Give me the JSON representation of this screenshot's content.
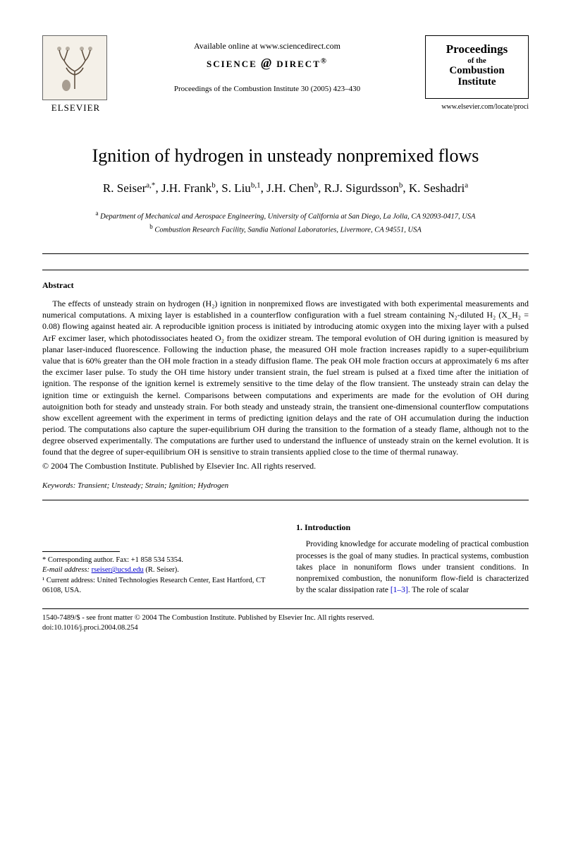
{
  "header": {
    "publisher_name": "ELSEVIER",
    "available_online": "Available online at www.sciencedirect.com",
    "sd_brand": "SCIENCE @ DIRECT®",
    "citation": "Proceedings of the Combustion Institute 30 (2005) 423–430",
    "journal_box": {
      "line1": "Proceedings",
      "line2": "of the",
      "line3": "Combustion",
      "line4": "Institute"
    },
    "journal_url": "www.elsevier.com/locate/proci"
  },
  "title": "Ignition of hydrogen in unsteady nonpremixed flows",
  "authors_html": "R. Seiser<sup>a,*</sup>, J.H. Frank<sup>b</sup>, S. Liu<sup>b,1</sup>, J.H. Chen<sup>b</sup>, R.J. Sigurdsson<sup>b</sup>, K. Seshadri<sup>a</sup>",
  "affiliations": {
    "a": "Department of Mechanical and Aerospace Engineering, University of California at San Diego, La Jolla, CA 92093-0417, USA",
    "b": "Combustion Research Facility, Sandia National Laboratories, Livermore, CA 94551, USA"
  },
  "abstract": {
    "heading": "Abstract",
    "body": "The effects of unsteady strain on hydrogen (H₂) ignition in nonpremixed flows are investigated with both experimental measurements and numerical computations. A mixing layer is established in a counterflow configuration with a fuel stream containing N₂-diluted H₂ (X_H₂ = 0.08) flowing against heated air. A reproducible ignition process is initiated by introducing atomic oxygen into the mixing layer with a pulsed ArF excimer laser, which photodissociates heated O₂ from the oxidizer stream. The temporal evolution of OH during ignition is measured by planar laser-induced fluorescence. Following the induction phase, the measured OH mole fraction increases rapidly to a super-equilibrium value that is 60% greater than the OH mole fraction in a steady diffusion flame. The peak OH mole fraction occurs at approximately 6 ms after the excimer laser pulse. To study the OH time history under transient strain, the fuel stream is pulsed at a fixed time after the initiation of ignition. The response of the ignition kernel is extremely sensitive to the time delay of the flow transient. The unsteady strain can delay the ignition time or extinguish the kernel. Comparisons between computations and experiments are made for the evolution of OH during autoignition both for steady and unsteady strain. For both steady and unsteady strain, the transient one-dimensional counterflow computations show excellent agreement with the experiment in terms of predicting ignition delays and the rate of OH accumulation during the induction period. The computations also capture the super-equilibrium OH during the transition to the formation of a steady flame, although not to the degree observed experimentally. The computations are further used to understand the influence of unsteady strain on the kernel evolution. It is found that the degree of super-equilibrium OH is sensitive to strain transients applied close to the time of thermal runaway.",
    "copyright": "© 2004 The Combustion Institute. Published by Elsevier Inc. All rights reserved."
  },
  "keywords": {
    "label": "Keywords:",
    "text": "Transient; Unsteady; Strain; Ignition; Hydrogen"
  },
  "footnotes": {
    "corr_label": "* Corresponding author. Fax: +1 858 534 5354.",
    "email_label": "E-mail address:",
    "email": "rseiser@ucsd.edu",
    "email_after": "(R. Seiser).",
    "current_addr": "¹ Current address: United Technologies Research Center, East Hartford, CT 06108, USA."
  },
  "intro": {
    "heading": "1. Introduction",
    "body": "Providing knowledge for accurate modeling of practical combustion processes is the goal of many studies. In practical systems, combustion takes place in nonuniform flows under transient conditions. In nonpremixed combustion, the nonuniform flow-field is characterized by the scalar dissipation rate [1–3]. The role of scalar"
  },
  "footer": {
    "line1": "1540-7489/$ - see front matter © 2004 The Combustion Institute. Published by Elsevier Inc. All rights reserved.",
    "line2": "doi:10.1016/j.proci.2004.08.254"
  },
  "colors": {
    "text": "#000000",
    "link": "#0000cc",
    "background": "#ffffff",
    "logo_bg": "#f4f0e8"
  }
}
